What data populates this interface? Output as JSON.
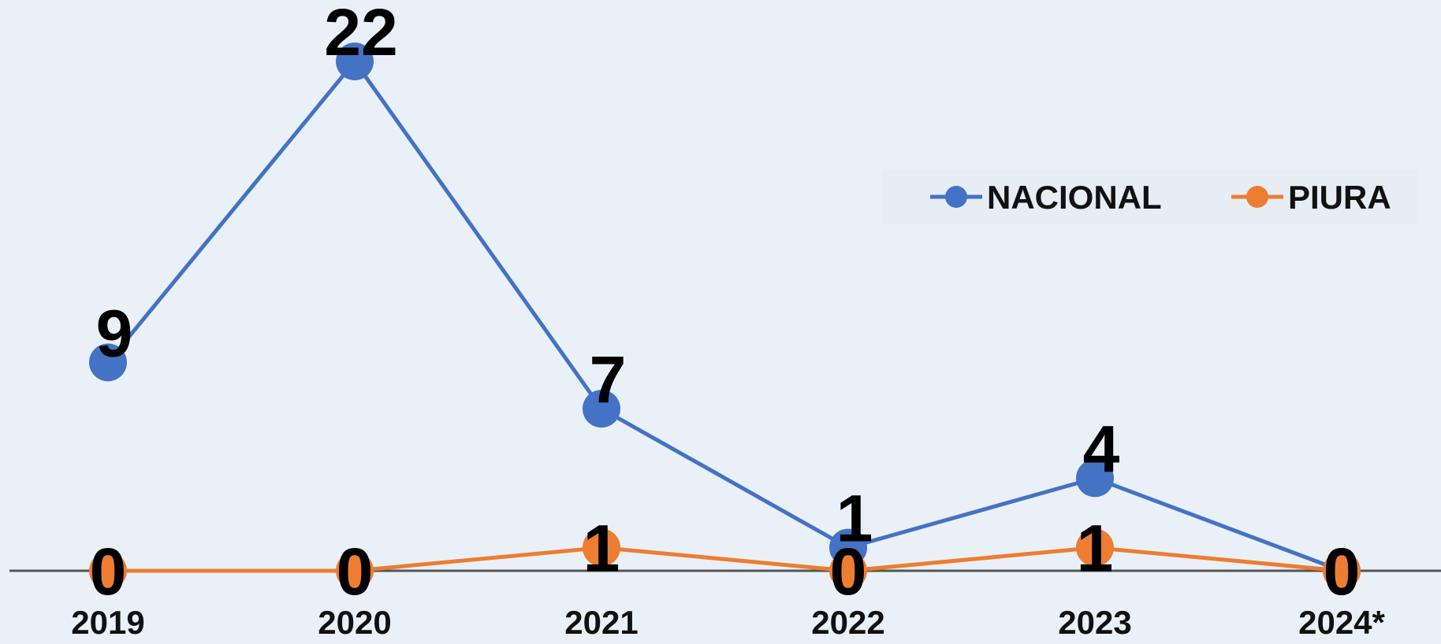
{
  "chart_data": {
    "type": "line",
    "title": "",
    "xlabel": "",
    "ylabel": "",
    "categories": [
      "2019",
      "2020",
      "2021",
      "2022",
      "2023",
      "2024*"
    ],
    "ylim": [
      0,
      22
    ],
    "grid": false,
    "legend_position": "top-right",
    "series": [
      {
        "name": "NACIONAL",
        "color": "#4472c4",
        "values": [
          9,
          22,
          7,
          1,
          4,
          0
        ]
      },
      {
        "name": "PIURA",
        "color": "#ed7d31",
        "values": [
          0,
          0,
          1,
          0,
          1,
          0
        ]
      }
    ]
  },
  "background_color": "#e9f0f8",
  "axis_color": "#555555"
}
